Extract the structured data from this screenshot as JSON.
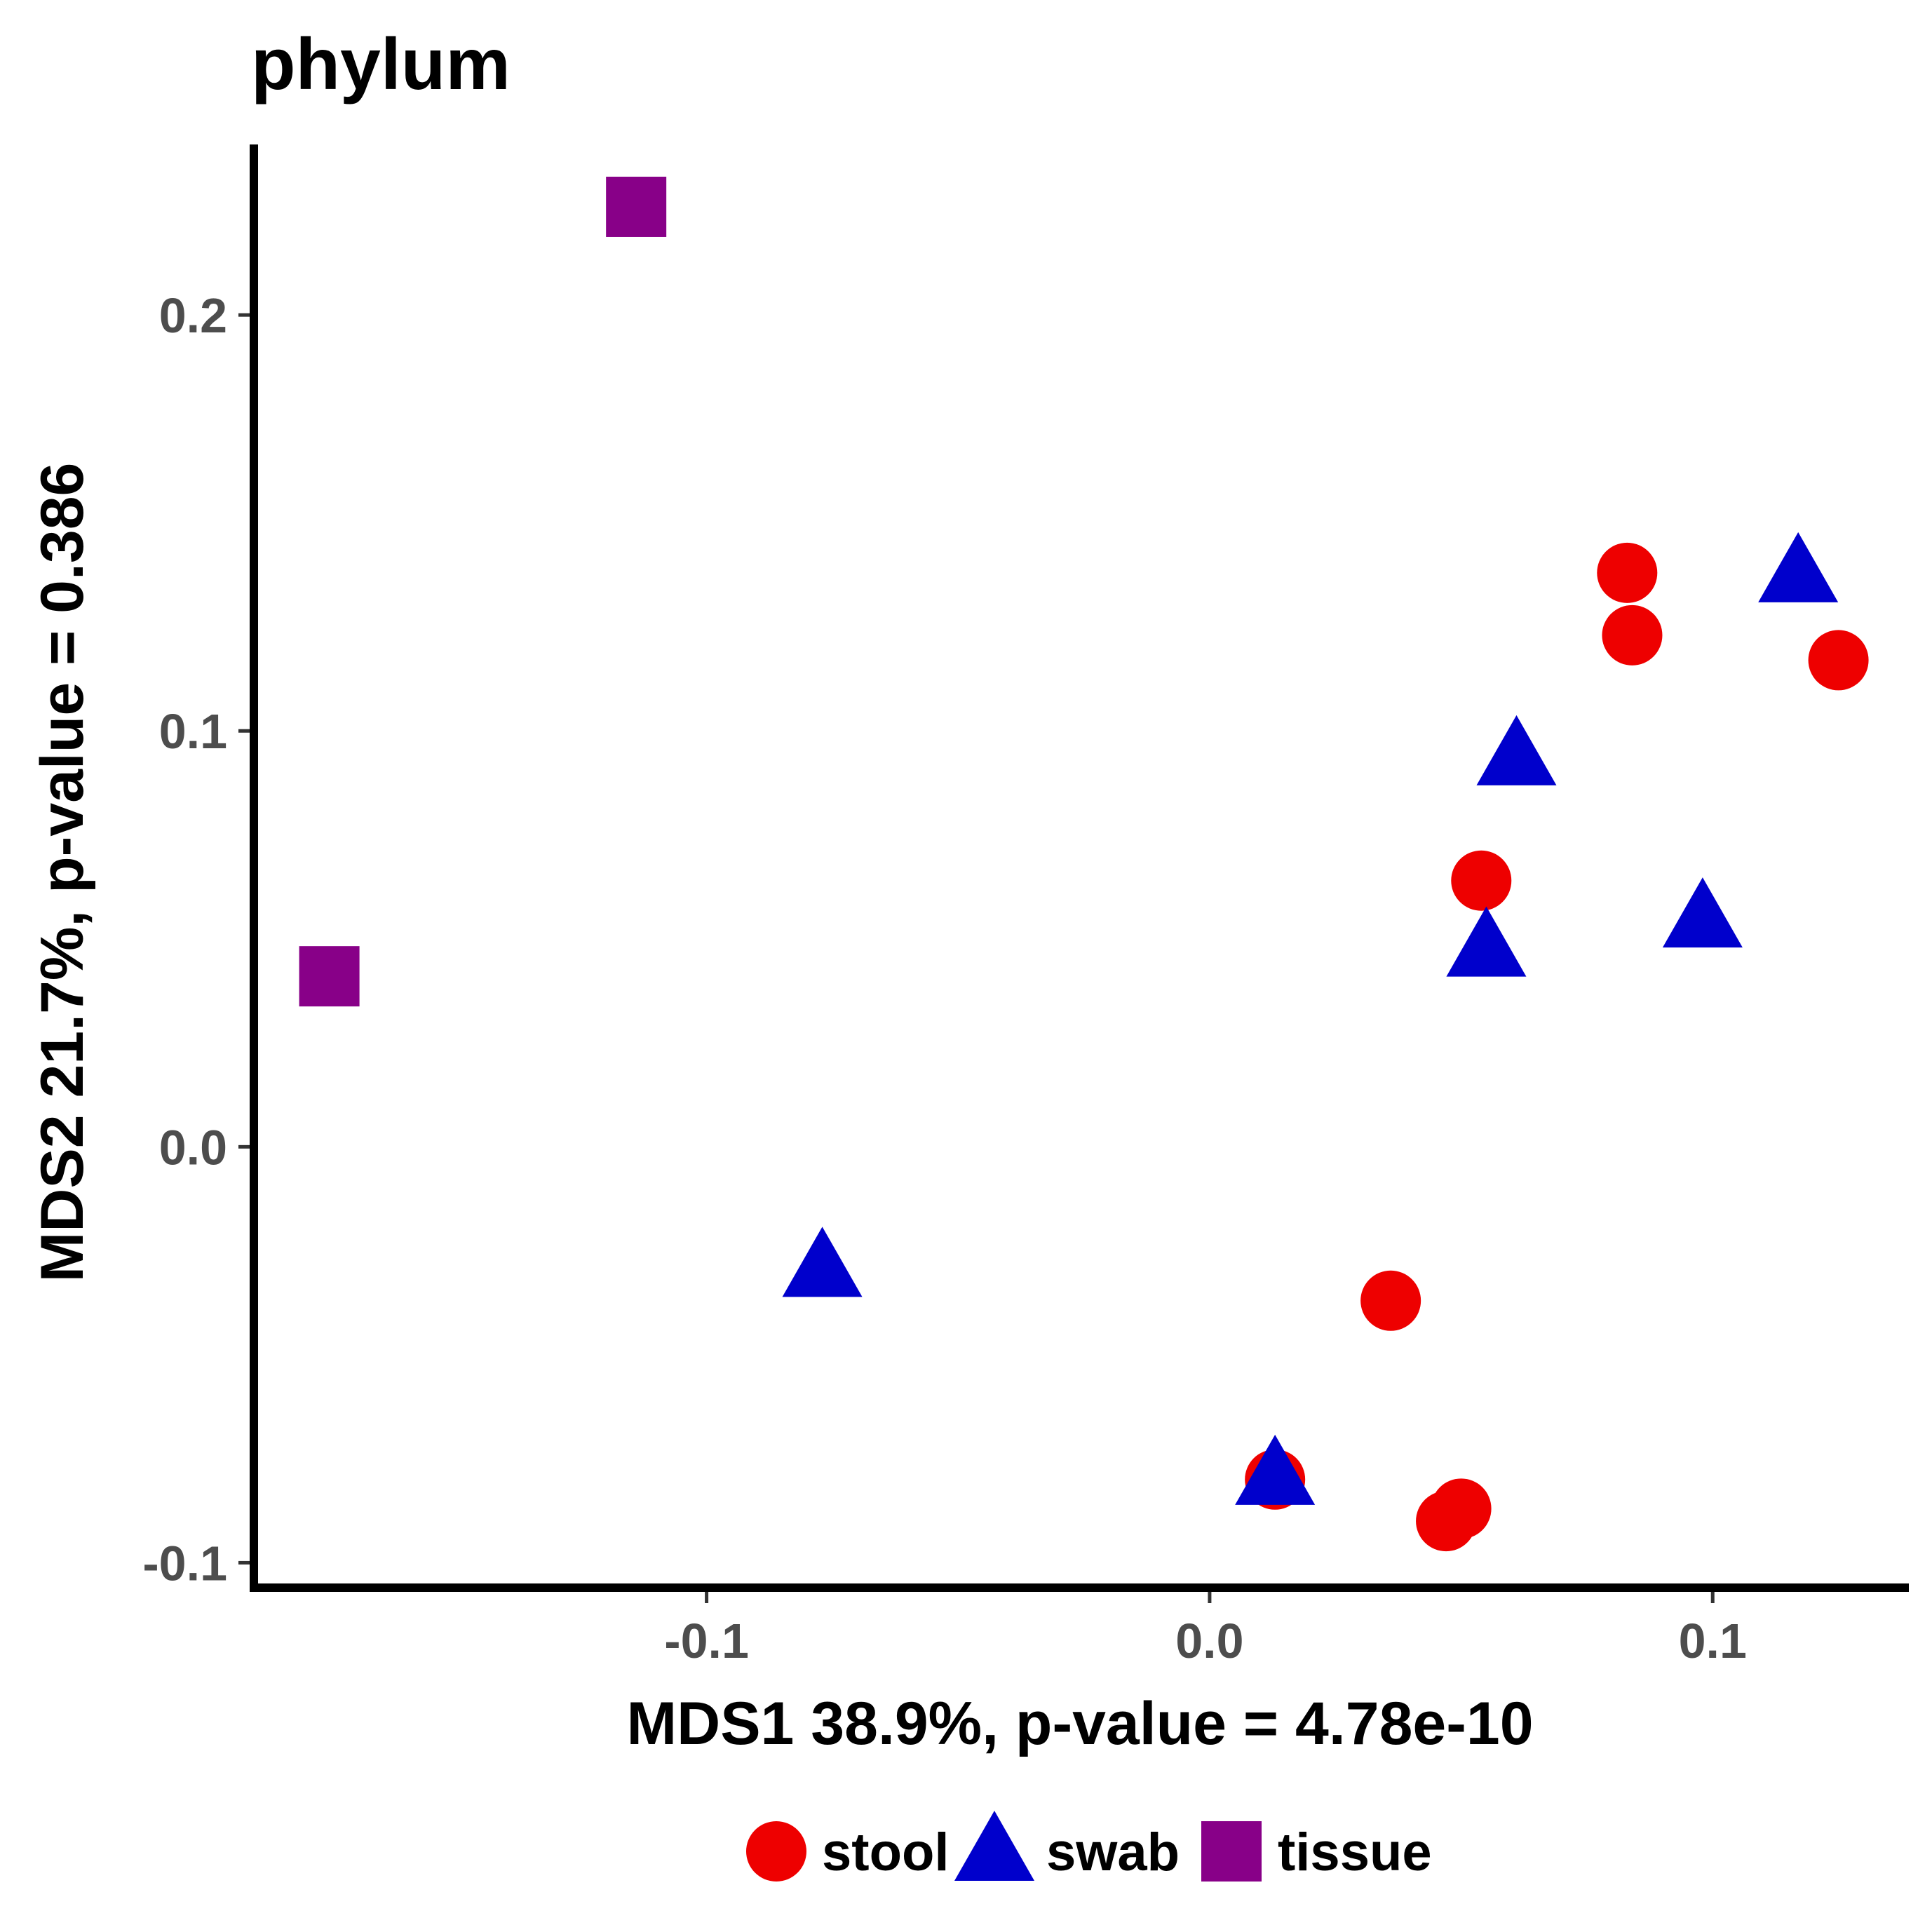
{
  "chart_data": {
    "type": "scatter",
    "title": "phylum",
    "xlabel": "MDS1 38.9%, p-value = 4.78e-10",
    "ylabel": "MDS2 21.7%, p-value = 0.386",
    "xlim": [
      -0.19,
      0.139
    ],
    "ylim": [
      -0.106,
      0.241
    ],
    "x_ticks": [
      {
        "value": -0.1,
        "label": "-0.1"
      },
      {
        "value": 0.0,
        "label": "0.0"
      },
      {
        "value": 0.1,
        "label": "0.1"
      }
    ],
    "y_ticks": [
      {
        "value": -0.1,
        "label": "-0.1"
      },
      {
        "value": 0.0,
        "label": "0.0"
      },
      {
        "value": 0.1,
        "label": "0.1"
      },
      {
        "value": 0.2,
        "label": "0.2"
      }
    ],
    "grid": false,
    "legend_position": "bottom",
    "series": [
      {
        "name": "stool",
        "shape": "circle",
        "color": "#EE0000",
        "points": [
          {
            "x": 0.083,
            "y": 0.138
          },
          {
            "x": 0.084,
            "y": 0.123
          },
          {
            "x": 0.125,
            "y": 0.117
          },
          {
            "x": 0.054,
            "y": 0.064
          },
          {
            "x": 0.036,
            "y": -0.037
          },
          {
            "x": 0.013,
            "y": -0.08
          },
          {
            "x": 0.05,
            "y": -0.087
          },
          {
            "x": 0.047,
            "y": -0.09
          }
        ]
      },
      {
        "name": "swab",
        "shape": "triangle",
        "color": "#0000CC",
        "points": [
          {
            "x": 0.117,
            "y": 0.138
          },
          {
            "x": 0.061,
            "y": 0.094
          },
          {
            "x": 0.098,
            "y": 0.055
          },
          {
            "x": 0.055,
            "y": 0.048
          },
          {
            "x": -0.077,
            "y": -0.029
          },
          {
            "x": 0.013,
            "y": -0.079
          }
        ]
      },
      {
        "name": "tissue",
        "shape": "square",
        "color": "#880088",
        "points": [
          {
            "x": -0.114,
            "y": 0.226
          },
          {
            "x": -0.175,
            "y": 0.041
          }
        ]
      }
    ]
  }
}
